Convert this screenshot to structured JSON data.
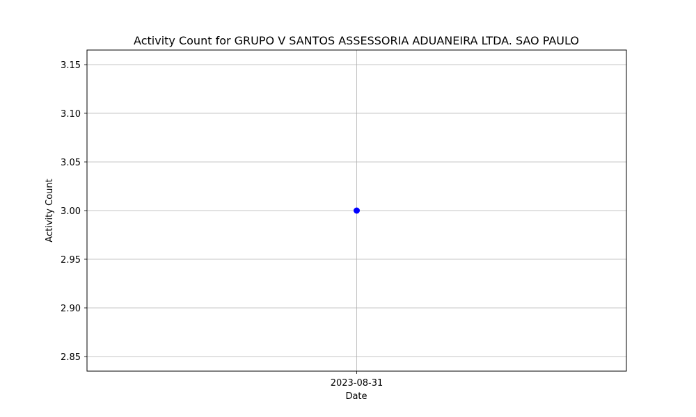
{
  "chart_data": {
    "type": "line",
    "title": "Activity Count for GRUPO V SANTOS ASSESSORIA ADUANEIRA LTDA. SAO PAULO",
    "xlabel": "Date",
    "ylabel": "Activity Count",
    "categories": [
      "2023-08-31"
    ],
    "series": [
      {
        "name": "Activity Count",
        "values": [
          3.0
        ],
        "color": "#0000ff",
        "marker": "circle"
      }
    ],
    "ylim": [
      2.835,
      3.165
    ],
    "yticks": [
      2.85,
      2.9,
      2.95,
      3.0,
      3.05,
      3.1,
      3.15
    ],
    "ytick_labels": [
      "2.85",
      "2.90",
      "2.95",
      "3.00",
      "3.05",
      "3.10",
      "3.15"
    ],
    "grid": true,
    "colors": {
      "grid": "#b0b0b0",
      "axes": "#000000",
      "marker": "#0000ff"
    }
  }
}
